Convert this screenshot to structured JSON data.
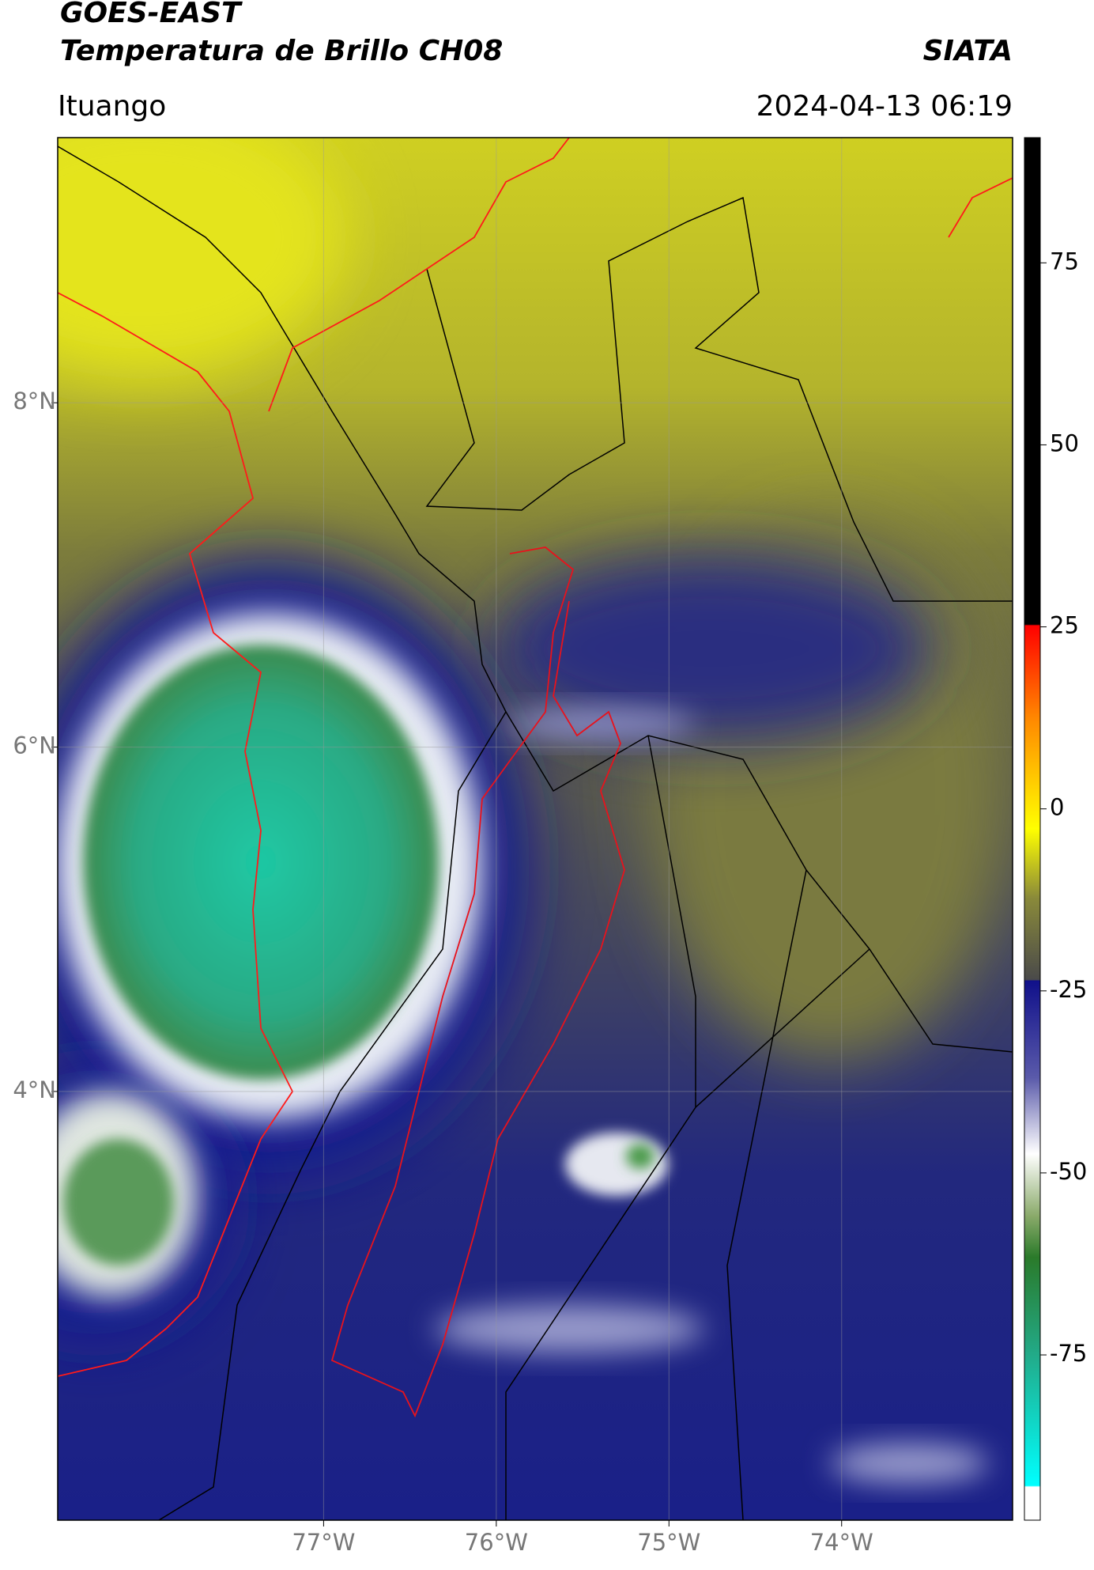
{
  "header": {
    "title": "GOES-EAST",
    "subtitle": "Temperatura de Brillo CH08",
    "source": "SIATA",
    "location": "Ituango",
    "timestamp": "2024-04-13 06:19"
  },
  "map": {
    "lon_lim": [
      -78.54,
      -73.01
    ],
    "lat_lim": [
      1.51,
      9.54
    ],
    "grid": true,
    "lon_ticks": [
      {
        "value": -77,
        "label": "77°W"
      },
      {
        "value": -76,
        "label": "76°W"
      },
      {
        "value": -75,
        "label": "75°W"
      },
      {
        "value": -74,
        "label": "74°W"
      }
    ],
    "lat_ticks": [
      {
        "value": 8,
        "label": "8°N"
      },
      {
        "value": 6,
        "label": "6°N"
      },
      {
        "value": 4,
        "label": "4°N"
      }
    ]
  },
  "colorbar": {
    "lim": [
      -97.7,
      92.2
    ],
    "ticks": [
      75,
      50,
      25,
      0,
      -25,
      -50,
      -75
    ]
  }
}
